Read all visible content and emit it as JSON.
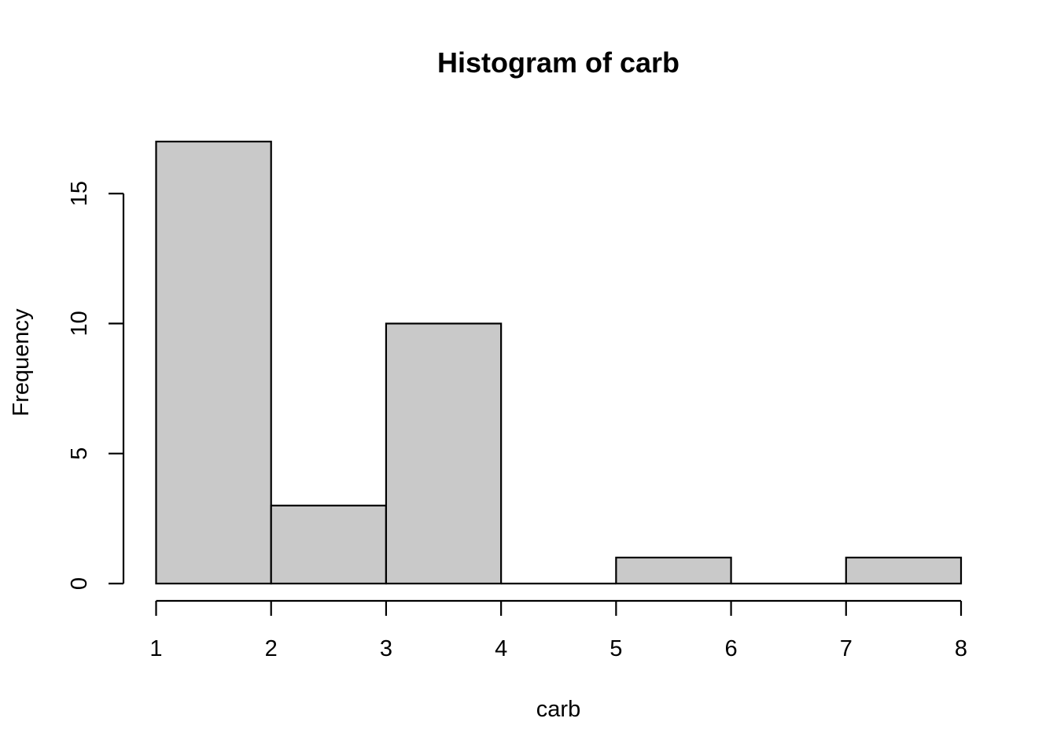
{
  "chart_data": {
    "type": "bar",
    "title": "Histogram of carb",
    "xlabel": "carb",
    "ylabel": "Frequency",
    "bins": [
      {
        "x0": 1,
        "x1": 2,
        "count": 17
      },
      {
        "x0": 2,
        "x1": 3,
        "count": 3
      },
      {
        "x0": 3,
        "x1": 4,
        "count": 10
      },
      {
        "x0": 4,
        "x1": 5,
        "count": 0
      },
      {
        "x0": 5,
        "x1": 6,
        "count": 1
      },
      {
        "x0": 6,
        "x1": 7,
        "count": 0
      },
      {
        "x0": 7,
        "x1": 8,
        "count": 1
      }
    ],
    "x_ticks": [
      "1",
      "2",
      "3",
      "4",
      "5",
      "6",
      "7",
      "8"
    ],
    "y_ticks": [
      "0",
      "5",
      "10",
      "15"
    ],
    "xlim": [
      1,
      8
    ],
    "ylim": [
      0,
      17
    ],
    "grid": false,
    "colors": {
      "bar_fill": "#c9c9c9",
      "bar_stroke": "#000000"
    }
  }
}
